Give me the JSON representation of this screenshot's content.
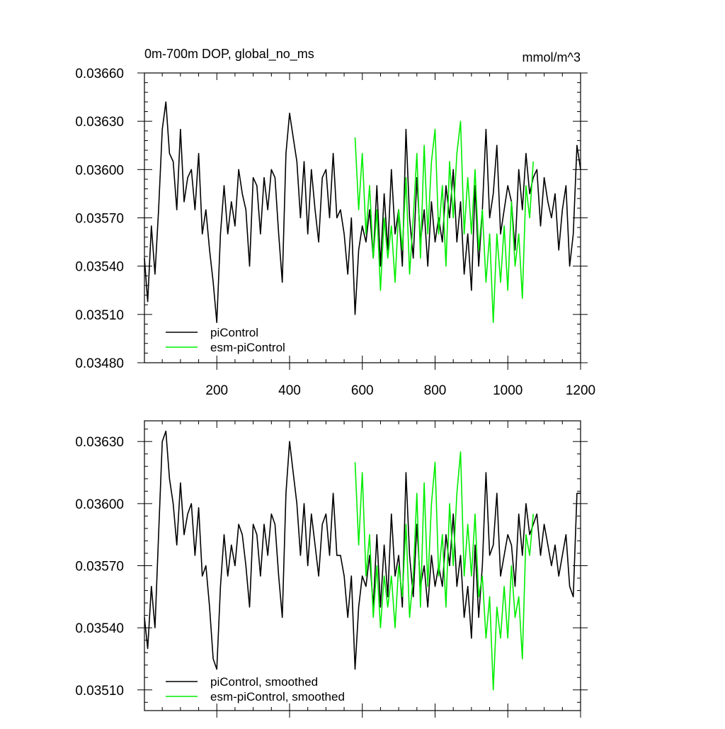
{
  "colors": {
    "piControl": "#000000",
    "esm_piControl": "#00ee00"
  },
  "chart_data": [
    {
      "type": "line",
      "title": "0m-700m DOP, global_no_ms",
      "units": "mmol/m^3",
      "xlim": [
        1,
        1200
      ],
      "ylim": [
        0.0348,
        0.0366
      ],
      "xticks": [
        200,
        400,
        600,
        800,
        1000,
        1200
      ],
      "xtick_labels": [
        "200",
        "400",
        "600",
        "800",
        "1000",
        "1200"
      ],
      "yticks": [
        0.0348,
        0.0351,
        0.0354,
        0.0357,
        0.036,
        0.0363,
        0.0366
      ],
      "ytick_labels": [
        "0.03480",
        "0.03510",
        "0.03540",
        "0.03570",
        "0.03600",
        "0.03630",
        "0.03660"
      ],
      "legend": [
        "piControl",
        "esm-piControl"
      ],
      "series": [
        {
          "name": "piControl",
          "color": "#000000",
          "x": [
            1,
            10,
            20,
            30,
            40,
            50,
            60,
            70,
            80,
            90,
            100,
            110,
            120,
            130,
            140,
            150,
            160,
            170,
            180,
            190,
            200,
            210,
            220,
            230,
            240,
            250,
            260,
            270,
            280,
            290,
            300,
            310,
            320,
            330,
            340,
            350,
            360,
            370,
            380,
            390,
            400,
            410,
            420,
            430,
            440,
            450,
            460,
            470,
            480,
            490,
            500,
            510,
            520,
            530,
            540,
            550,
            560,
            570,
            580,
            590,
            600,
            610,
            620,
            630,
            640,
            650,
            660,
            670,
            680,
            690,
            700,
            710,
            720,
            730,
            740,
            750,
            760,
            770,
            780,
            790,
            800,
            810,
            820,
            830,
            840,
            850,
            860,
            870,
            880,
            890,
            900,
            910,
            920,
            930,
            940,
            950,
            960,
            970,
            980,
            990,
            1000,
            1010,
            1020,
            1030,
            1040,
            1050,
            1060,
            1070,
            1080,
            1090,
            1100,
            1110,
            1120,
            1130,
            1140,
            1150,
            1160,
            1170,
            1180,
            1190,
            1200
          ],
          "y": [
            0.03545,
            0.03518,
            0.03565,
            0.03535,
            0.03575,
            0.03625,
            0.03642,
            0.0361,
            0.03605,
            0.03575,
            0.03625,
            0.0358,
            0.03595,
            0.036,
            0.03575,
            0.0361,
            0.0356,
            0.03575,
            0.0355,
            0.0353,
            0.03505,
            0.0356,
            0.0359,
            0.0356,
            0.0358,
            0.03565,
            0.036,
            0.03585,
            0.03575,
            0.0354,
            0.03595,
            0.0359,
            0.0356,
            0.03595,
            0.03575,
            0.036,
            0.03595,
            0.0356,
            0.0353,
            0.0361,
            0.03635,
            0.0362,
            0.03605,
            0.0357,
            0.03605,
            0.0356,
            0.036,
            0.03575,
            0.03555,
            0.03595,
            0.036,
            0.0357,
            0.0361,
            0.0357,
            0.03575,
            0.0356,
            0.03535,
            0.0357,
            0.0351,
            0.0355,
            0.03565,
            0.03555,
            0.03575,
            0.03545,
            0.0359,
            0.0354,
            0.03585,
            0.0355,
            0.036,
            0.0356,
            0.03575,
            0.0354,
            0.03625,
            0.0357,
            0.03545,
            0.03595,
            0.03555,
            0.03575,
            0.0354,
            0.0358,
            0.03555,
            0.0357,
            0.03555,
            0.0359,
            0.0357,
            0.036,
            0.03555,
            0.0358,
            0.03535,
            0.0356,
            0.03525,
            0.0359,
            0.0354,
            0.03575,
            0.03625,
            0.0357,
            0.03585,
            0.03615,
            0.0356,
            0.03575,
            0.0359,
            0.0358,
            0.0355,
            0.036,
            0.03575,
            0.0361,
            0.03585,
            0.03595,
            0.036,
            0.03565,
            0.03595,
            0.0358,
            0.0357,
            0.03585,
            0.0355,
            0.03575,
            0.0359,
            0.0354,
            0.0356,
            0.03615,
            0.036
          ]
        },
        {
          "name": "esm-piControl",
          "color": "#00ee00",
          "x": [
            580,
            590,
            600,
            610,
            620,
            630,
            640,
            650,
            660,
            670,
            680,
            690,
            700,
            710,
            720,
            730,
            740,
            750,
            760,
            770,
            780,
            790,
            800,
            810,
            820,
            830,
            840,
            850,
            860,
            870,
            880,
            890,
            900,
            910,
            920,
            930,
            940,
            950,
            960,
            970,
            980,
            990,
            1000,
            1010,
            1020,
            1030,
            1040,
            1050,
            1060,
            1070
          ],
          "y": [
            0.0362,
            0.03575,
            0.0361,
            0.0356,
            0.0359,
            0.03545,
            0.03575,
            0.03525,
            0.0357,
            0.03545,
            0.03565,
            0.0353,
            0.03575,
            0.0355,
            0.03595,
            0.03535,
            0.0357,
            0.0361,
            0.03545,
            0.03615,
            0.0356,
            0.03605,
            0.03625,
            0.0356,
            0.0359,
            0.0354,
            0.03605,
            0.0357,
            0.0361,
            0.0363,
            0.0356,
            0.03595,
            0.0356,
            0.036,
            0.0355,
            0.03575,
            0.0353,
            0.0356,
            0.03505,
            0.0356,
            0.0353,
            0.03565,
            0.03525,
            0.0358,
            0.0354,
            0.0356,
            0.0352,
            0.0359,
            0.0357,
            0.03605
          ]
        }
      ]
    },
    {
      "type": "line",
      "xlim": [
        1,
        1200
      ],
      "ylim": [
        0.035,
        0.0364
      ],
      "xticks": [
        200,
        400,
        600,
        800,
        1000,
        1200
      ],
      "yticks": [
        0.0351,
        0.0354,
        0.0357,
        0.036,
        0.0363
      ],
      "ytick_labels": [
        "0.03510",
        "0.03540",
        "0.03570",
        "0.03600",
        "0.03630"
      ],
      "legend": [
        "piControl, smoothed",
        "esm-piControl, smoothed"
      ],
      "series": [
        {
          "name": "piControl, smoothed",
          "color": "#000000",
          "x": [
            1,
            10,
            20,
            30,
            40,
            50,
            60,
            70,
            80,
            90,
            100,
            110,
            120,
            130,
            140,
            150,
            160,
            170,
            180,
            190,
            200,
            210,
            220,
            230,
            240,
            250,
            260,
            270,
            280,
            290,
            300,
            310,
            320,
            330,
            340,
            350,
            360,
            370,
            380,
            390,
            400,
            410,
            420,
            430,
            440,
            450,
            460,
            470,
            480,
            490,
            500,
            510,
            520,
            530,
            540,
            550,
            560,
            570,
            580,
            590,
            600,
            610,
            620,
            630,
            640,
            650,
            660,
            670,
            680,
            690,
            700,
            710,
            720,
            730,
            740,
            750,
            760,
            770,
            780,
            790,
            800,
            810,
            820,
            830,
            840,
            850,
            860,
            870,
            880,
            890,
            900,
            910,
            920,
            930,
            940,
            950,
            960,
            970,
            980,
            990,
            1000,
            1010,
            1020,
            1030,
            1040,
            1050,
            1060,
            1070,
            1080,
            1090,
            1100,
            1110,
            1120,
            1130,
            1140,
            1150,
            1160,
            1170,
            1180,
            1190,
            1200
          ],
          "y": [
            0.03545,
            0.0353,
            0.0356,
            0.0354,
            0.03585,
            0.0363,
            0.03635,
            0.03612,
            0.036,
            0.0358,
            0.0361,
            0.03585,
            0.03595,
            0.036,
            0.03575,
            0.03598,
            0.03565,
            0.0357,
            0.0355,
            0.03525,
            0.0352,
            0.0356,
            0.03585,
            0.03565,
            0.0358,
            0.0357,
            0.0359,
            0.03585,
            0.0357,
            0.0355,
            0.0359,
            0.03585,
            0.03565,
            0.0359,
            0.03575,
            0.03595,
            0.0359,
            0.03565,
            0.03545,
            0.03605,
            0.0363,
            0.03615,
            0.036,
            0.03575,
            0.036,
            0.0357,
            0.03595,
            0.0358,
            0.03565,
            0.0359,
            0.03595,
            0.03575,
            0.03605,
            0.03575,
            0.03575,
            0.03565,
            0.03545,
            0.03565,
            0.0352,
            0.0355,
            0.03565,
            0.0356,
            0.03575,
            0.0355,
            0.03585,
            0.0355,
            0.0358,
            0.03555,
            0.03595,
            0.03565,
            0.03575,
            0.0355,
            0.03615,
            0.03575,
            0.03555,
            0.0359,
            0.0356,
            0.0357,
            0.0355,
            0.03575,
            0.0356,
            0.0357,
            0.0356,
            0.03585,
            0.0357,
            0.03595,
            0.0356,
            0.03575,
            0.03545,
            0.0356,
            0.03535,
            0.0358,
            0.03545,
            0.0357,
            0.03615,
            0.03575,
            0.0358,
            0.03605,
            0.03565,
            0.03575,
            0.03585,
            0.0358,
            0.0356,
            0.03595,
            0.03575,
            0.036,
            0.03585,
            0.0359,
            0.03595,
            0.03575,
            0.0359,
            0.0358,
            0.0357,
            0.0358,
            0.03565,
            0.03575,
            0.03585,
            0.0356,
            0.03555,
            0.03605,
            0.03605
          ]
        },
        {
          "name": "esm-piControl, smoothed",
          "color": "#00ee00",
          "x": [
            580,
            590,
            600,
            610,
            620,
            630,
            640,
            650,
            660,
            670,
            680,
            690,
            700,
            710,
            720,
            730,
            740,
            750,
            760,
            770,
            780,
            790,
            800,
            810,
            820,
            830,
            840,
            850,
            860,
            870,
            880,
            890,
            900,
            910,
            920,
            930,
            940,
            950,
            960,
            970,
            980,
            990,
            1000,
            1010,
            1020,
            1030,
            1040,
            1050,
            1060,
            1070
          ],
          "y": [
            0.0362,
            0.0358,
            0.03615,
            0.03565,
            0.03585,
            0.03545,
            0.0357,
            0.0354,
            0.03565,
            0.0355,
            0.03565,
            0.0354,
            0.0357,
            0.03555,
            0.0359,
            0.03545,
            0.03565,
            0.03605,
            0.0355,
            0.0361,
            0.0356,
            0.036,
            0.0362,
            0.03565,
            0.03585,
            0.0355,
            0.036,
            0.0357,
            0.03605,
            0.03625,
            0.03565,
            0.0359,
            0.03565,
            0.03595,
            0.03555,
            0.03565,
            0.03535,
            0.03555,
            0.0351,
            0.0355,
            0.03535,
            0.0356,
            0.03535,
            0.0357,
            0.03545,
            0.03555,
            0.03525,
            0.03585,
            0.03575,
            0.03595
          ]
        }
      ]
    }
  ]
}
